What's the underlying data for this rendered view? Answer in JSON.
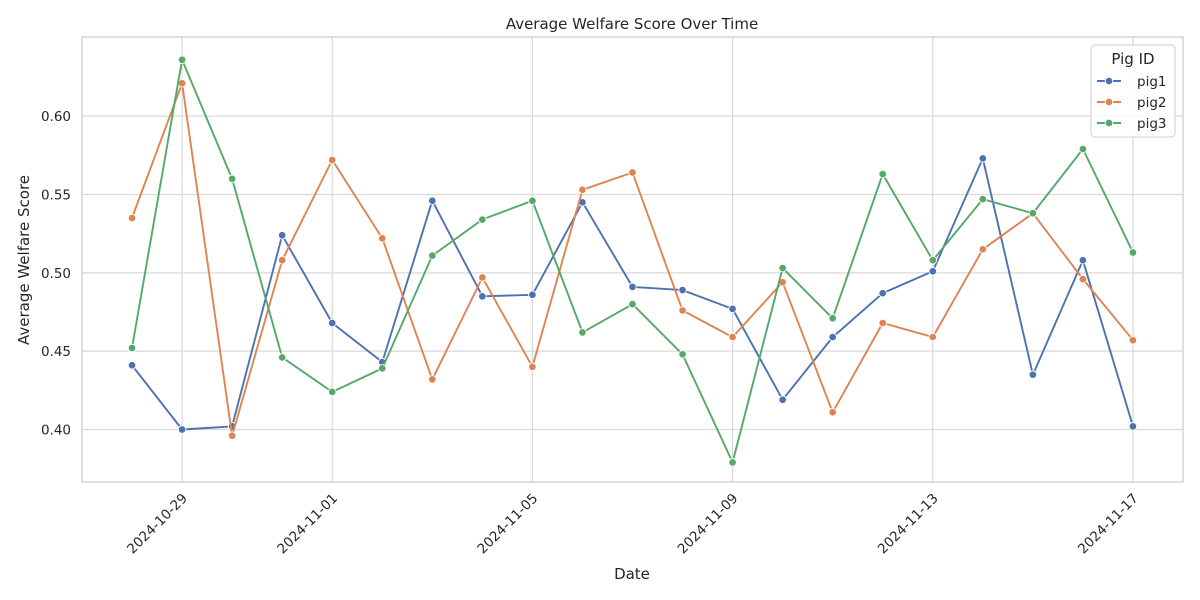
{
  "chart_data": {
    "type": "line",
    "title": "Average Welfare Score Over Time",
    "xlabel": "Date",
    "ylabel": "Average Welfare Score",
    "x_dates": [
      "2024-10-28",
      "2024-10-29",
      "2024-10-30",
      "2024-10-31",
      "2024-11-01",
      "2024-11-02",
      "2024-11-03",
      "2024-11-04",
      "2024-11-05",
      "2024-11-06",
      "2024-11-07",
      "2024-11-08",
      "2024-11-09",
      "2024-11-10",
      "2024-11-11",
      "2024-11-12",
      "2024-11-13",
      "2024-11-14",
      "2024-11-15",
      "2024-11-16",
      "2024-11-17"
    ],
    "x_ticks": [
      "2024-10-29",
      "2024-11-01",
      "2024-11-05",
      "2024-11-09",
      "2024-11-13",
      "2024-11-17"
    ],
    "xlim": [
      "2024-10-27.0",
      "2024-11-18.0"
    ],
    "y_ticks": [
      0.4,
      0.45,
      0.5,
      0.55,
      0.6
    ],
    "y_tick_labels": [
      "0.40",
      "0.45",
      "0.50",
      "0.55",
      "0.60"
    ],
    "ylim": [
      0.3665,
      0.6505
    ],
    "grid": true,
    "legend": {
      "title": "Pig ID",
      "placement": "top-right"
    },
    "series": [
      {
        "name": "pig1",
        "color": "#4c72b0",
        "values": [
          0.441,
          0.4,
          0.402,
          0.524,
          0.468,
          0.443,
          0.546,
          0.485,
          0.486,
          0.545,
          0.491,
          0.489,
          0.477,
          0.419,
          0.459,
          0.487,
          0.501,
          0.573,
          0.435,
          0.508,
          0.402
        ]
      },
      {
        "name": "pig2",
        "color": "#dd8452",
        "values": [
          0.535,
          0.621,
          0.396,
          0.508,
          0.572,
          0.522,
          0.432,
          0.497,
          0.44,
          0.553,
          0.564,
          0.476,
          0.459,
          0.494,
          0.411,
          0.468,
          0.459,
          0.515,
          0.538,
          0.496,
          0.457
        ]
      },
      {
        "name": "pig3",
        "color": "#55a868",
        "values": [
          0.452,
          0.636,
          0.56,
          0.446,
          0.424,
          0.439,
          0.511,
          0.534,
          0.546,
          0.462,
          0.48,
          0.448,
          0.379,
          0.503,
          0.471,
          0.563,
          0.508,
          0.547,
          0.538,
          0.579,
          0.513
        ]
      }
    ]
  }
}
